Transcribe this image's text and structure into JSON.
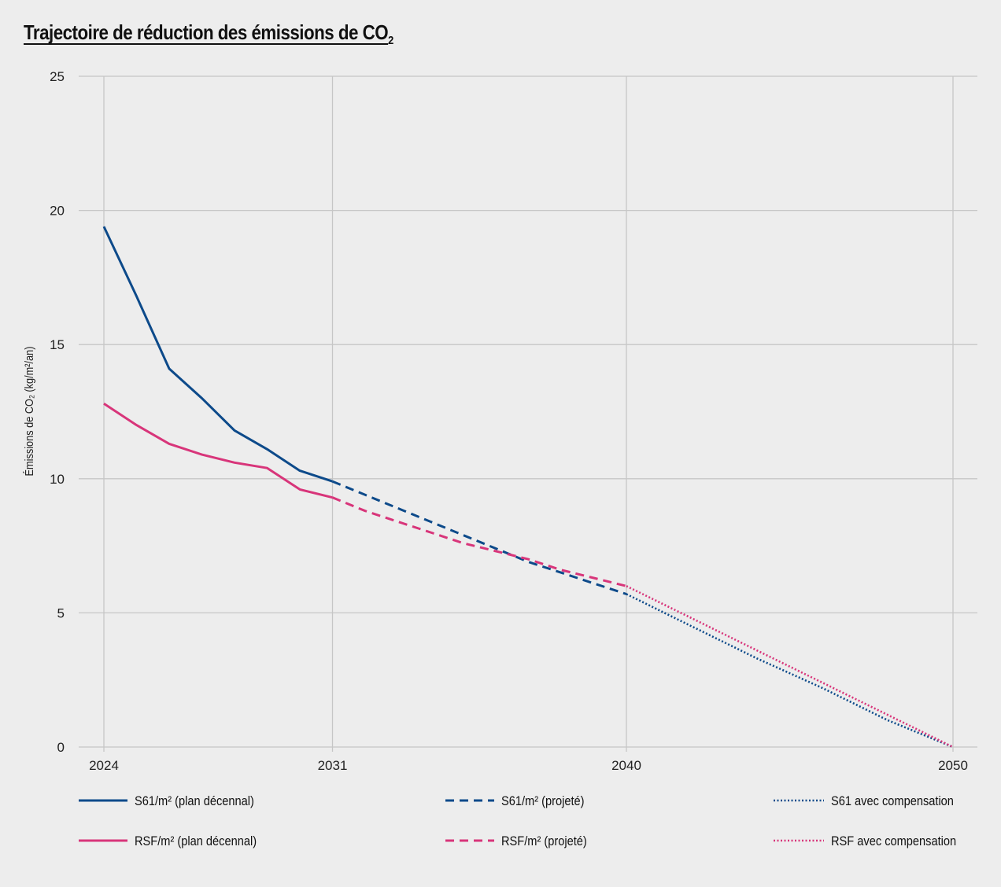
{
  "chart_data": {
    "type": "line",
    "title": "Trajectoire de réduction des émissions de CO",
    "title_subscript": "2",
    "ylabel": "Émissions de CO₂ (kg/m²/an)",
    "xlabel": "",
    "xlim": [
      2024,
      2050
    ],
    "ylim": [
      0,
      25
    ],
    "x_ticks": [
      2024,
      2031,
      2040,
      2050
    ],
    "y_ticks": [
      0,
      5,
      10,
      15,
      20,
      25
    ],
    "grid": true,
    "legend_position": "bottom",
    "colors": {
      "S61": "#0d4a8a",
      "RSF": "#d8357a"
    },
    "series": [
      {
        "name": "S61/m² (plan décennal)",
        "color": "#0d4a8a",
        "style": "solid",
        "x": [
          2024,
          2025,
          2026,
          2027,
          2028,
          2029,
          2030,
          2031
        ],
        "y": [
          19.4,
          16.8,
          14.1,
          13.0,
          11.8,
          11.1,
          10.3,
          9.9
        ]
      },
      {
        "name": "S61/m² (projeté)",
        "color": "#0d4a8a",
        "style": "dashed",
        "x": [
          2031,
          2032,
          2033,
          2034,
          2035,
          2036,
          2037,
          2038,
          2039,
          2040
        ],
        "y": [
          9.9,
          9.4,
          8.9,
          8.4,
          7.9,
          7.4,
          6.9,
          6.5,
          6.1,
          5.7
        ]
      },
      {
        "name": "S61 avec compensation",
        "color": "#0d4a8a",
        "style": "dotted",
        "x": [
          2040,
          2042,
          2044,
          2046,
          2048,
          2050
        ],
        "y": [
          5.7,
          4.5,
          3.3,
          2.2,
          1.0,
          0.0
        ]
      },
      {
        "name": "RSF/m² (plan décennal)",
        "color": "#d8357a",
        "style": "solid",
        "x": [
          2024,
          2025,
          2026,
          2027,
          2028,
          2029,
          2030,
          2031
        ],
        "y": [
          12.8,
          12.0,
          11.3,
          10.9,
          10.6,
          10.4,
          9.6,
          9.3
        ]
      },
      {
        "name": "RSF/m² (projeté)",
        "color": "#d8357a",
        "style": "dashed",
        "x": [
          2031,
          2032,
          2033,
          2034,
          2035,
          2036,
          2037,
          2038,
          2039,
          2040
        ],
        "y": [
          9.3,
          8.8,
          8.4,
          8.0,
          7.6,
          7.3,
          7.0,
          6.6,
          6.3,
          6.0
        ]
      },
      {
        "name": "RSF avec compensation",
        "color": "#d8357a",
        "style": "dotted",
        "x": [
          2040,
          2042,
          2044,
          2046,
          2048,
          2050
        ],
        "y": [
          6.0,
          4.8,
          3.6,
          2.4,
          1.2,
          0.0
        ]
      }
    ]
  }
}
